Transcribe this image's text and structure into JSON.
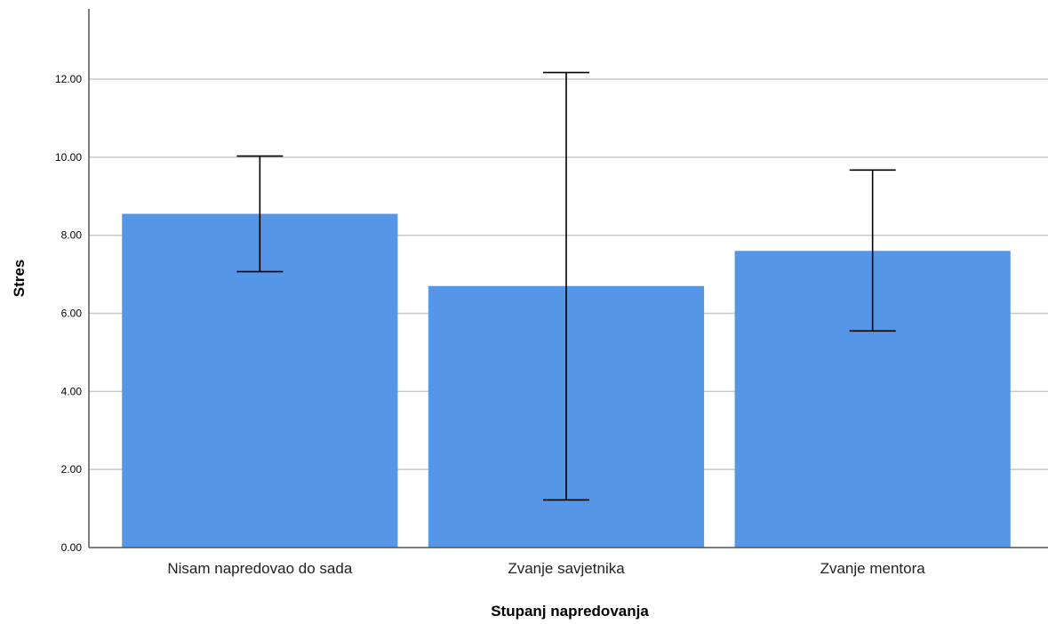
{
  "chart_data": {
    "type": "bar",
    "categories": [
      "Nisam napredovao do sada",
      "Zvanje savjetnika",
      "Zvanje mentora"
    ],
    "values": [
      8.55,
      6.7,
      7.6
    ],
    "error_low": [
      7.07,
      1.22,
      5.55
    ],
    "error_high": [
      10.03,
      12.17,
      9.67
    ],
    "xlabel": "Stupanj napredovanja",
    "ylabel": "Stres",
    "ylim": [
      0,
      13.8
    ],
    "yticks": [
      "0.00",
      "2.00",
      "4.00",
      "6.00",
      "8.00",
      "10.00",
      "12.00"
    ],
    "ytick_values": [
      0,
      2,
      4,
      6,
      8,
      10,
      12
    ],
    "grid": true,
    "bar_color": "#5596e6",
    "error_bar_color": "#000000",
    "grid_color": "#c8c8c8"
  }
}
